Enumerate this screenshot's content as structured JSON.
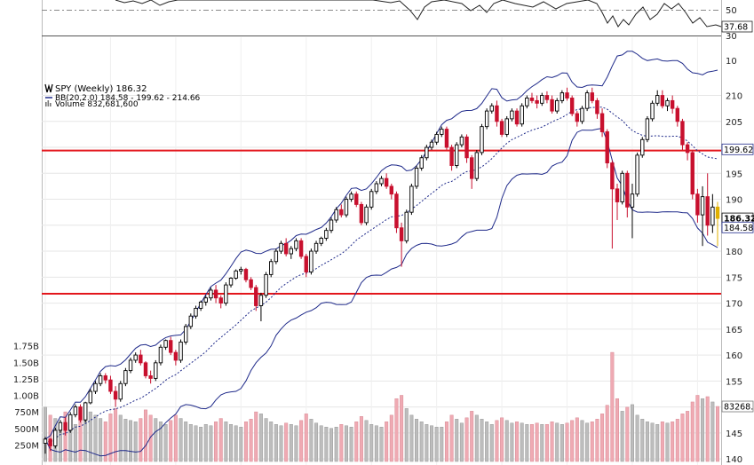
{
  "chart_data": {
    "type": "candlestick",
    "title": "SPY (Weekly) 186.32",
    "legend": {
      "price": "SPY (Weekly) 186.32",
      "bb": "BB(20,2.0) 184.58 - 199.62 - 214.66",
      "volume": "Volume 832,681,600"
    },
    "price_axis": {
      "ylim": [
        139.5,
        213
      ],
      "ticks": [
        140,
        145,
        150,
        155,
        160,
        165,
        170,
        175,
        180,
        185,
        190,
        195,
        200,
        205,
        210
      ]
    },
    "upper_indicator_axis": {
      "ticks": [
        50,
        30,
        10
      ],
      "value": "37.68"
    },
    "volume_axis": {
      "ticks": [
        "250M",
        "500M",
        "750M",
        "1.00B",
        "1.25B",
        "1.50B",
        "1.75B"
      ],
      "values_m": [
        250,
        500,
        750,
        1000,
        1250,
        1500,
        1750
      ]
    },
    "value_tags": {
      "bb_middle": "199.62",
      "last_price": "186.32",
      "bb_lower": "184.58",
      "volume": "83268..."
    },
    "horizontal_lines": [
      199.4,
      171.8
    ],
    "candles": [
      [
        143.0,
        144.2,
        141.0,
        143.8,
        820
      ],
      [
        143.8,
        144.0,
        141.5,
        142.5,
        700
      ],
      [
        142.5,
        146.0,
        142.0,
        145.5,
        650
      ],
      [
        145.5,
        147.5,
        145.0,
        147.0,
        560
      ],
      [
        147.0,
        148.0,
        144.5,
        145.5,
        750
      ],
      [
        145.5,
        149.0,
        145.0,
        148.5,
        600
      ],
      [
        148.5,
        150.5,
        148.0,
        150.0,
        560
      ],
      [
        150.0,
        150.5,
        147.0,
        147.5,
        700
      ],
      [
        147.5,
        151.0,
        147.0,
        150.8,
        680
      ],
      [
        150.8,
        153.5,
        150.5,
        153.0,
        750
      ],
      [
        153.0,
        155.0,
        152.5,
        154.5,
        700
      ],
      [
        154.5,
        156.5,
        154.0,
        156.0,
        650
      ],
      [
        156.0,
        156.5,
        154.5,
        155.2,
        600
      ],
      [
        155.2,
        156.0,
        152.5,
        153.0,
        720
      ],
      [
        153.0,
        154.0,
        150.0,
        151.5,
        800
      ],
      [
        151.5,
        155.0,
        151.0,
        154.5,
        700
      ],
      [
        154.5,
        157.5,
        154.0,
        157.0,
        640
      ],
      [
        157.0,
        159.5,
        156.5,
        159.0,
        620
      ],
      [
        159.0,
        160.5,
        158.5,
        160.0,
        600
      ],
      [
        160.0,
        161.0,
        158.0,
        158.5,
        650
      ],
      [
        158.5,
        158.8,
        155.5,
        156.0,
        780
      ],
      [
        156.0,
        157.0,
        154.5,
        155.5,
        700
      ],
      [
        155.5,
        159.0,
        155.0,
        158.5,
        650
      ],
      [
        158.5,
        162.0,
        158.0,
        161.5,
        600
      ],
      [
        161.5,
        163.0,
        161.0,
        162.8,
        560
      ],
      [
        162.8,
        163.5,
        160.0,
        160.5,
        620
      ],
      [
        160.5,
        161.0,
        158.0,
        159.0,
        700
      ],
      [
        159.0,
        163.0,
        158.5,
        162.5,
        650
      ],
      [
        162.5,
        166.0,
        162.0,
        165.5,
        600
      ],
      [
        165.5,
        168.0,
        165.0,
        167.5,
        560
      ],
      [
        167.5,
        169.5,
        167.0,
        169.0,
        540
      ],
      [
        169.0,
        170.5,
        168.5,
        170.2,
        520
      ],
      [
        170.2,
        171.5,
        169.5,
        171.0,
        560
      ],
      [
        171.0,
        173.0,
        170.5,
        172.5,
        540
      ],
      [
        172.5,
        173.5,
        170.0,
        171.0,
        600
      ],
      [
        171.0,
        171.5,
        169.0,
        170.0,
        650
      ],
      [
        170.0,
        174.0,
        169.5,
        173.5,
        600
      ],
      [
        173.5,
        175.0,
        173.0,
        174.8,
        560
      ],
      [
        174.8,
        176.5,
        174.5,
        176.2,
        540
      ],
      [
        176.2,
        177.0,
        175.5,
        176.5,
        520
      ],
      [
        176.5,
        176.8,
        174.0,
        174.5,
        600
      ],
      [
        174.5,
        175.0,
        172.5,
        173.0,
        640
      ],
      [
        173.0,
        173.5,
        168.5,
        169.5,
        750
      ],
      [
        169.5,
        172.0,
        166.5,
        171.5,
        720
      ],
      [
        171.5,
        176.0,
        171.0,
        175.5,
        650
      ],
      [
        175.5,
        178.5,
        175.0,
        178.0,
        600
      ],
      [
        178.0,
        180.5,
        177.5,
        180.0,
        560
      ],
      [
        180.0,
        182.0,
        179.5,
        181.5,
        540
      ],
      [
        181.5,
        182.5,
        179.0,
        179.5,
        580
      ],
      [
        179.5,
        181.0,
        178.5,
        180.5,
        560
      ],
      [
        180.5,
        182.5,
        180.0,
        182.0,
        540
      ],
      [
        182.0,
        182.5,
        178.5,
        179.0,
        620
      ],
      [
        179.0,
        179.5,
        175.0,
        176.0,
        720
      ],
      [
        176.0,
        180.5,
        175.5,
        180.0,
        640
      ],
      [
        180.0,
        182.0,
        179.5,
        181.5,
        580
      ],
      [
        181.5,
        182.8,
        181.0,
        182.5,
        540
      ],
      [
        182.5,
        184.5,
        182.0,
        184.0,
        520
      ],
      [
        184.0,
        186.5,
        183.5,
        186.0,
        500
      ],
      [
        186.0,
        188.5,
        185.5,
        188.0,
        520
      ],
      [
        188.0,
        189.0,
        186.5,
        187.0,
        560
      ],
      [
        187.0,
        190.5,
        186.5,
        190.0,
        540
      ],
      [
        190.0,
        191.5,
        189.5,
        191.0,
        520
      ],
      [
        191.0,
        191.5,
        188.5,
        189.0,
        600
      ],
      [
        189.0,
        189.5,
        185.0,
        185.5,
        680
      ],
      [
        185.5,
        189.0,
        185.0,
        188.5,
        620
      ],
      [
        188.5,
        192.0,
        188.0,
        191.5,
        560
      ],
      [
        191.5,
        193.5,
        191.0,
        193.0,
        540
      ],
      [
        193.0,
        194.5,
        192.5,
        194.0,
        520
      ],
      [
        194.0,
        195.0,
        192.0,
        192.5,
        600
      ],
      [
        192.5,
        193.0,
        190.0,
        191.0,
        700
      ],
      [
        191.0,
        191.5,
        183.5,
        184.5,
        950
      ],
      [
        184.5,
        185.5,
        177.0,
        182.0,
        1000
      ],
      [
        182.0,
        188.0,
        181.5,
        187.5,
        800
      ],
      [
        187.5,
        193.0,
        187.0,
        192.5,
        700
      ],
      [
        192.5,
        196.5,
        192.0,
        196.0,
        640
      ],
      [
        196.0,
        198.5,
        195.5,
        198.0,
        600
      ],
      [
        198.0,
        200.5,
        197.5,
        200.0,
        560
      ],
      [
        200.0,
        201.5,
        199.5,
        201.0,
        540
      ],
      [
        201.0,
        203.0,
        200.5,
        202.5,
        520
      ],
      [
        202.5,
        204.0,
        202.0,
        203.5,
        520
      ],
      [
        203.5,
        204.0,
        199.5,
        200.0,
        600
      ],
      [
        200.0,
        200.5,
        195.5,
        196.5,
        700
      ],
      [
        196.5,
        201.0,
        196.0,
        200.5,
        640
      ],
      [
        200.5,
        202.5,
        200.0,
        202.0,
        580
      ],
      [
        202.0,
        202.5,
        197.0,
        198.0,
        660
      ],
      [
        198.0,
        198.5,
        192.0,
        194.0,
        760
      ],
      [
        194.0,
        199.5,
        193.5,
        199.0,
        700
      ],
      [
        199.0,
        204.5,
        198.5,
        204.0,
        640
      ],
      [
        204.0,
        207.5,
        203.5,
        207.0,
        600
      ],
      [
        207.0,
        208.5,
        206.5,
        208.0,
        560
      ],
      [
        208.0,
        209.0,
        204.0,
        205.0,
        620
      ],
      [
        205.0,
        205.5,
        202.0,
        202.5,
        660
      ],
      [
        202.5,
        206.0,
        202.0,
        205.5,
        620
      ],
      [
        205.5,
        207.5,
        205.0,
        207.0,
        580
      ],
      [
        207.0,
        207.5,
        204.0,
        204.5,
        600
      ],
      [
        204.5,
        208.5,
        204.0,
        208.0,
        580
      ],
      [
        208.0,
        210.0,
        207.5,
        209.5,
        560
      ],
      [
        209.5,
        210.5,
        208.5,
        209.0,
        560
      ],
      [
        209.0,
        210.0,
        207.5,
        208.5,
        580
      ],
      [
        208.5,
        210.5,
        208.0,
        210.0,
        560
      ],
      [
        210.0,
        210.8,
        208.5,
        209.2,
        560
      ],
      [
        209.2,
        210.0,
        206.5,
        207.0,
        600
      ],
      [
        207.0,
        209.5,
        206.5,
        209.0,
        580
      ],
      [
        209.0,
        211.0,
        208.5,
        210.5,
        560
      ],
      [
        210.5,
        211.5,
        209.0,
        209.5,
        580
      ],
      [
        209.5,
        210.0,
        206.0,
        206.5,
        620
      ],
      [
        206.5,
        207.0,
        204.0,
        205.0,
        660
      ],
      [
        205.0,
        208.0,
        204.5,
        207.5,
        620
      ],
      [
        207.5,
        211.0,
        207.0,
        210.5,
        580
      ],
      [
        210.5,
        211.5,
        208.5,
        209.0,
        600
      ],
      [
        209.0,
        209.5,
        205.5,
        206.5,
        640
      ],
      [
        206.5,
        207.5,
        202.0,
        203.0,
        720
      ],
      [
        203.0,
        203.5,
        196.0,
        197.0,
        850
      ],
      [
        197.0,
        197.5,
        180.5,
        192.0,
        1650
      ],
      [
        192.0,
        193.0,
        186.0,
        189.5,
        950
      ],
      [
        189.5,
        195.5,
        189.0,
        195.0,
        760
      ],
      [
        195.0,
        195.5,
        186.5,
        188.5,
        820
      ],
      [
        188.5,
        193.0,
        182.5,
        191.0,
        860
      ],
      [
        191.0,
        199.0,
        190.5,
        198.5,
        700
      ],
      [
        198.5,
        202.0,
        198.0,
        201.5,
        640
      ],
      [
        201.5,
        206.0,
        201.0,
        205.5,
        600
      ],
      [
        205.5,
        209.0,
        205.0,
        208.5,
        580
      ],
      [
        208.5,
        211.0,
        208.0,
        210.0,
        560
      ],
      [
        210.0,
        211.0,
        207.5,
        208.0,
        600
      ],
      [
        208.0,
        209.5,
        207.0,
        209.0,
        580
      ],
      [
        209.0,
        210.0,
        206.5,
        207.5,
        600
      ],
      [
        207.5,
        208.0,
        204.0,
        205.0,
        640
      ],
      [
        205.0,
        205.5,
        199.5,
        200.5,
        720
      ],
      [
        200.5,
        201.0,
        197.5,
        199.0,
        760
      ],
      [
        199.0,
        199.5,
        190.0,
        191.0,
        900
      ],
      [
        191.0,
        192.0,
        185.5,
        187.0,
        1000
      ],
      [
        187.0,
        192.5,
        181.0,
        190.5,
        950
      ],
      [
        190.5,
        195.0,
        183.0,
        185.0,
        980
      ],
      [
        185.0,
        191.0,
        183.5,
        188.5,
        900
      ],
      [
        188.5,
        189.5,
        181.0,
        186.32,
        832
      ]
    ]
  }
}
